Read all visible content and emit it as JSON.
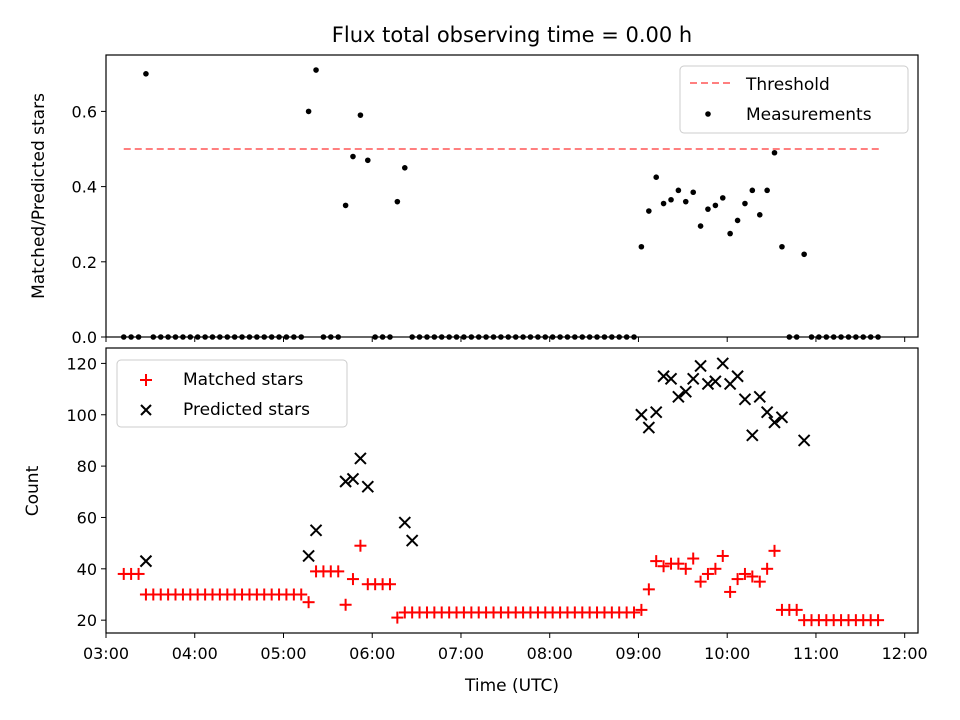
{
  "figure_title": "Flux total observing time = 0.00 h",
  "colors": {
    "threshold": "#ff7f7f",
    "measurement": "#000000",
    "matched": "#ff0000",
    "predicted": "#000000"
  },
  "chart_data": [
    {
      "type": "scatter",
      "panel": "top",
      "ylabel": "Matched/Predicted stars",
      "xlim": [
        3.0,
        12.15
      ],
      "ylim": [
        0,
        0.75
      ],
      "yticks": [
        0.0,
        0.2,
        0.4,
        0.6
      ],
      "ytick_labels": [
        "0.0",
        "0.2",
        "0.4",
        "0.6"
      ],
      "grid": false,
      "legend_position": "top-right",
      "threshold": {
        "name": "Threshold",
        "value": 0.5,
        "x_range": [
          3.2,
          11.72
        ],
        "style": "dashed"
      },
      "series": [
        {
          "name": "Measurements",
          "marker": "dot",
          "x": [
            3.2,
            3.283,
            3.367,
            3.45,
            3.533,
            3.617,
            3.7,
            3.783,
            3.867,
            3.95,
            4.033,
            4.117,
            4.2,
            4.283,
            4.367,
            4.45,
            4.533,
            4.617,
            4.7,
            4.783,
            4.867,
            4.95,
            5.033,
            5.117,
            5.2,
            5.283,
            5.367,
            5.45,
            5.533,
            5.617,
            5.7,
            5.783,
            5.867,
            5.95,
            6.033,
            6.117,
            6.2,
            6.283,
            6.367,
            6.45,
            6.533,
            6.617,
            6.7,
            6.783,
            6.867,
            6.95,
            7.033,
            7.117,
            7.2,
            7.283,
            7.367,
            7.45,
            7.533,
            7.617,
            7.7,
            7.783,
            7.867,
            7.95,
            8.033,
            8.117,
            8.2,
            8.283,
            8.367,
            8.45,
            8.533,
            8.617,
            8.7,
            8.783,
            8.867,
            8.95,
            9.033,
            9.117,
            9.2,
            9.283,
            9.367,
            9.45,
            9.533,
            9.617,
            9.7,
            9.783,
            9.867,
            9.95,
            10.033,
            10.117,
            10.2,
            10.283,
            10.367,
            10.45,
            10.533,
            10.617,
            10.7,
            10.783,
            10.867,
            10.95,
            11.033,
            11.117,
            11.2,
            11.283,
            11.367,
            11.45,
            11.533,
            11.617,
            11.7
          ],
          "y": [
            0,
            0,
            0,
            0.7,
            0,
            0,
            0,
            0,
            0,
            0,
            0,
            0,
            0,
            0,
            0,
            0,
            0,
            0,
            0,
            0,
            0,
            0,
            0,
            0,
            0,
            0.6,
            0.71,
            0,
            0,
            0,
            0.35,
            0.48,
            0.59,
            0.47,
            0,
            0,
            0,
            0.36,
            0.45,
            0,
            0,
            0,
            0,
            0,
            0,
            0,
            0,
            0,
            0,
            0,
            0,
            0,
            0,
            0,
            0,
            0,
            0,
            0,
            0,
            0,
            0,
            0,
            0,
            0,
            0,
            0,
            0,
            0,
            0,
            0,
            0.24,
            0.335,
            0.425,
            0.355,
            0.365,
            0.39,
            0.36,
            0.385,
            0.295,
            0.34,
            0.35,
            0.37,
            0.275,
            0.31,
            0.355,
            0.39,
            0.325,
            0.39,
            0.49,
            0.24,
            0,
            0,
            0.22,
            0,
            0,
            0,
            0,
            0,
            0,
            0,
            0,
            0,
            0
          ]
        }
      ]
    },
    {
      "type": "scatter",
      "panel": "bottom",
      "xlabel": "Time (UTC)",
      "ylabel": "Count",
      "xlim": [
        3.0,
        12.15
      ],
      "ylim": [
        15,
        126
      ],
      "yticks": [
        20,
        40,
        60,
        80,
        100,
        120
      ],
      "ytick_labels": [
        "20",
        "40",
        "60",
        "80",
        "100",
        "120"
      ],
      "xticks": [
        3,
        4,
        5,
        6,
        7,
        8,
        9,
        10,
        11,
        12
      ],
      "xtick_labels": [
        "03:00",
        "04:00",
        "05:00",
        "06:00",
        "07:00",
        "08:00",
        "09:00",
        "10:00",
        "11:00",
        "12:00"
      ],
      "grid": false,
      "legend_position": "top-left",
      "series": [
        {
          "name": "Matched stars",
          "marker": "plus",
          "x": [
            3.2,
            3.283,
            3.367,
            3.45,
            3.533,
            3.617,
            3.7,
            3.783,
            3.867,
            3.95,
            4.033,
            4.117,
            4.2,
            4.283,
            4.367,
            4.45,
            4.533,
            4.617,
            4.7,
            4.783,
            4.867,
            4.95,
            5.033,
            5.117,
            5.2,
            5.283,
            5.367,
            5.45,
            5.533,
            5.617,
            5.7,
            5.783,
            5.867,
            5.95,
            6.033,
            6.117,
            6.2,
            6.283,
            6.367,
            6.45,
            6.533,
            6.617,
            6.7,
            6.783,
            6.867,
            6.95,
            7.033,
            7.117,
            7.2,
            7.283,
            7.367,
            7.45,
            7.533,
            7.617,
            7.7,
            7.783,
            7.867,
            7.95,
            8.033,
            8.117,
            8.2,
            8.283,
            8.367,
            8.45,
            8.533,
            8.617,
            8.7,
            8.783,
            8.867,
            8.95,
            9.033,
            9.117,
            9.2,
            9.283,
            9.367,
            9.45,
            9.533,
            9.617,
            9.7,
            9.783,
            9.867,
            9.95,
            10.033,
            10.117,
            10.2,
            10.283,
            10.367,
            10.45,
            10.533,
            10.617,
            10.7,
            10.783,
            10.867,
            10.95,
            11.033,
            11.117,
            11.2,
            11.283,
            11.367,
            11.45,
            11.533,
            11.617,
            11.7
          ],
          "y": [
            38,
            38,
            38,
            30,
            30,
            30,
            30,
            30,
            30,
            30,
            30,
            30,
            30,
            30,
            30,
            30,
            30,
            30,
            30,
            30,
            30,
            30,
            30,
            30,
            30,
            27,
            39,
            39,
            39,
            39,
            26,
            36,
            49,
            34,
            34,
            34,
            34,
            21,
            23,
            23,
            23,
            23,
            23,
            23,
            23,
            23,
            23,
            23,
            23,
            23,
            23,
            23,
            23,
            23,
            23,
            23,
            23,
            23,
            23,
            23,
            23,
            23,
            23,
            23,
            23,
            23,
            23,
            23,
            23,
            23,
            24,
            32,
            43,
            41,
            42,
            42,
            40,
            44,
            35,
            38,
            40,
            45,
            31,
            36,
            38,
            37,
            35,
            40,
            47,
            24,
            24,
            24,
            20,
            20,
            20,
            20,
            20,
            20,
            20,
            20,
            20,
            20,
            20
          ]
        },
        {
          "name": "Predicted stars",
          "marker": "x",
          "x": [
            3.45,
            5.283,
            5.367,
            5.7,
            5.783,
            5.867,
            5.95,
            6.367,
            6.45,
            9.033,
            9.117,
            9.2,
            9.283,
            9.367,
            9.45,
            9.533,
            9.617,
            9.7,
            9.783,
            9.867,
            9.95,
            10.033,
            10.117,
            10.2,
            10.283,
            10.367,
            10.45,
            10.533,
            10.617,
            10.867
          ],
          "y": [
            43,
            45,
            55,
            74,
            75,
            83,
            72,
            58,
            51,
            100,
            95,
            101,
            115,
            114,
            107,
            109,
            114,
            119,
            112,
            113,
            120,
            112,
            115,
            106,
            92,
            107,
            101,
            97,
            99,
            90
          ]
        }
      ]
    }
  ]
}
